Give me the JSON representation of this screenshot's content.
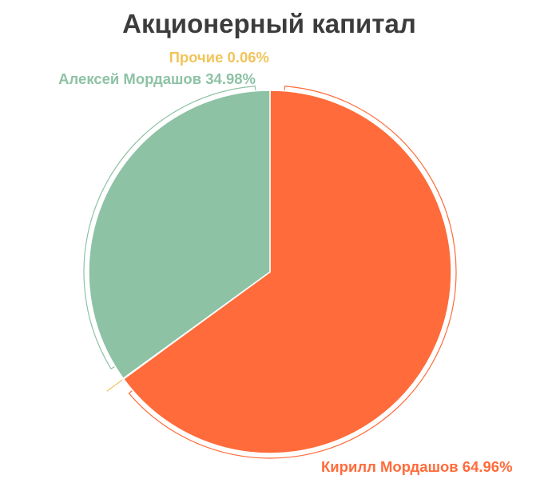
{
  "chart_data": {
    "type": "pie",
    "title": "Акционерный капитал",
    "slices": [
      {
        "label": "Кирилл Мордашов 64.96%",
        "value": 64.96,
        "color": "#ff6b3a"
      },
      {
        "label": "Прочие 0.06%",
        "value": 0.06,
        "color": "#f2c45a"
      },
      {
        "label": "Алексей Мордашов 34.98%",
        "value": 34.98,
        "color": "#8dc2a4"
      }
    ],
    "start_angle": "12 o'clock",
    "direction": "clockwise",
    "legend": "none",
    "labels": "outside-with-leader-arcs"
  }
}
